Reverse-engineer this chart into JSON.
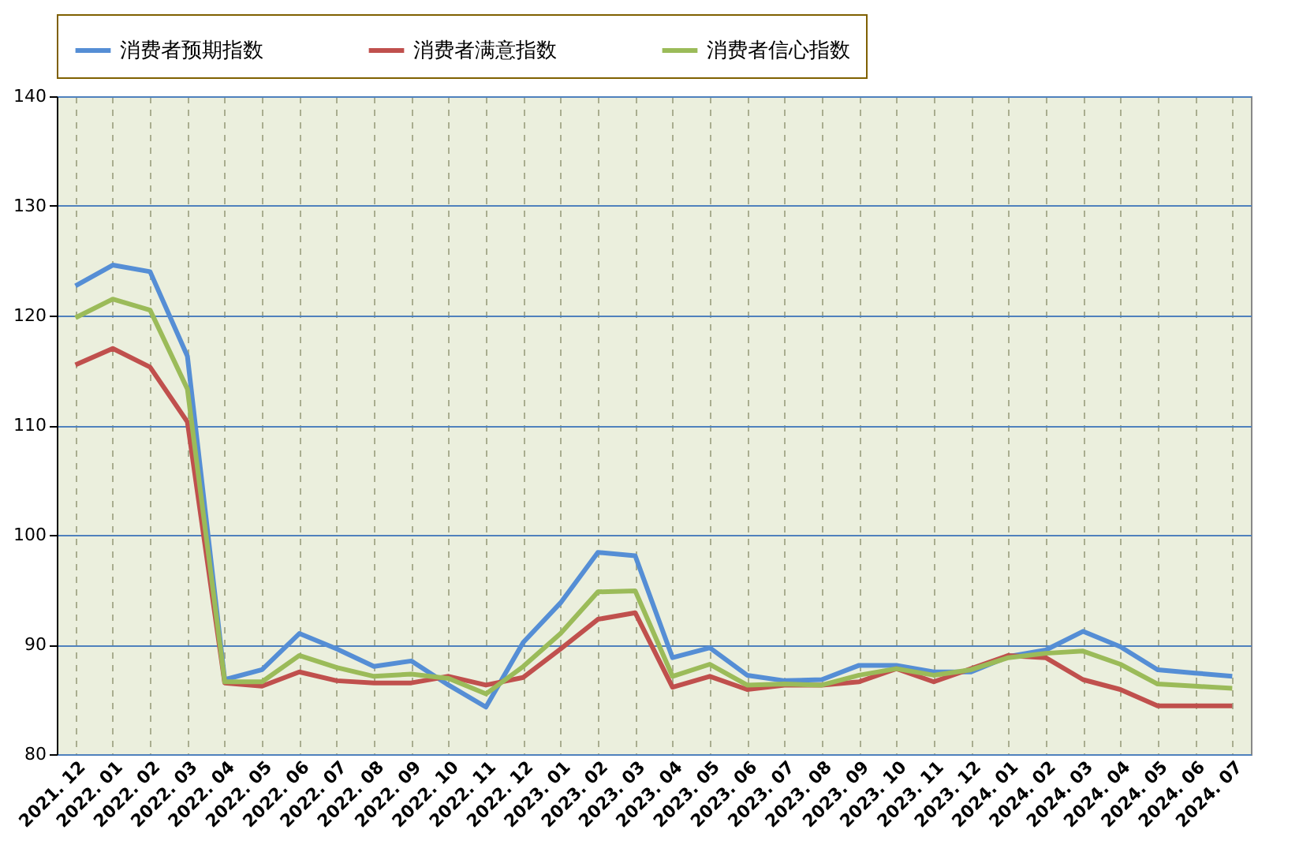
{
  "chart_data": {
    "type": "line",
    "categories": [
      "2021. 12",
      "2022. 01",
      "2022. 02",
      "2022. 03",
      "2022. 04",
      "2022. 05",
      "2022. 06",
      "2022. 07",
      "2022. 08",
      "2022. 09",
      "2022. 10",
      "2022. 11",
      "2022. 12",
      "2023. 01",
      "2023. 02",
      "2023. 03",
      "2023. 04",
      "2023. 05",
      "2023. 06",
      "2023. 07",
      "2023. 08",
      "2023. 09",
      "2023. 10",
      "2023. 11",
      "2023. 12",
      "2024. 01",
      "2024. 02",
      "2024. 03",
      "2024. 04",
      "2024. 05",
      "2024. 06",
      "2024. 07"
    ],
    "series": [
      {
        "name": "消费者预期指数",
        "color": "#558ed5",
        "values": [
          122.7,
          124.6,
          124.0,
          116.3,
          86.8,
          87.7,
          91.0,
          89.6,
          88.0,
          88.5,
          86.3,
          84.3,
          90.2,
          93.8,
          98.4,
          98.1,
          88.8,
          89.7,
          87.2,
          86.7,
          86.8,
          88.1,
          88.1,
          87.5,
          87.5,
          88.9,
          89.5,
          91.2,
          89.8,
          87.7,
          87.4,
          87.1
        ]
      },
      {
        "name": "消费者满意指数",
        "color": "#c0504d",
        "values": [
          115.5,
          117.0,
          115.3,
          110.3,
          86.5,
          86.2,
          87.5,
          86.7,
          86.5,
          86.5,
          87.1,
          86.3,
          87.0,
          89.6,
          92.3,
          92.9,
          86.1,
          87.1,
          85.9,
          86.3,
          86.3,
          86.6,
          87.8,
          86.6,
          87.8,
          89.0,
          88.8,
          86.8,
          85.9,
          84.4,
          84.4,
          84.4
        ]
      },
      {
        "name": "消费者信心指数",
        "color": "#9bbb59",
        "values": [
          119.8,
          121.5,
          120.5,
          113.3,
          86.6,
          86.6,
          89.0,
          87.9,
          87.1,
          87.3,
          86.9,
          85.5,
          88.0,
          91.0,
          94.8,
          94.9,
          87.1,
          88.2,
          86.3,
          86.4,
          86.3,
          87.2,
          87.8,
          87.2,
          87.7,
          88.8,
          89.2,
          89.4,
          88.2,
          86.4,
          86.2,
          86.0
        ]
      }
    ],
    "ylim": [
      80,
      140
    ],
    "yticks": [
      80,
      90,
      100,
      110,
      120,
      130,
      140
    ],
    "grid": true,
    "legend": "top",
    "line_style": "solid",
    "marker": "none"
  }
}
